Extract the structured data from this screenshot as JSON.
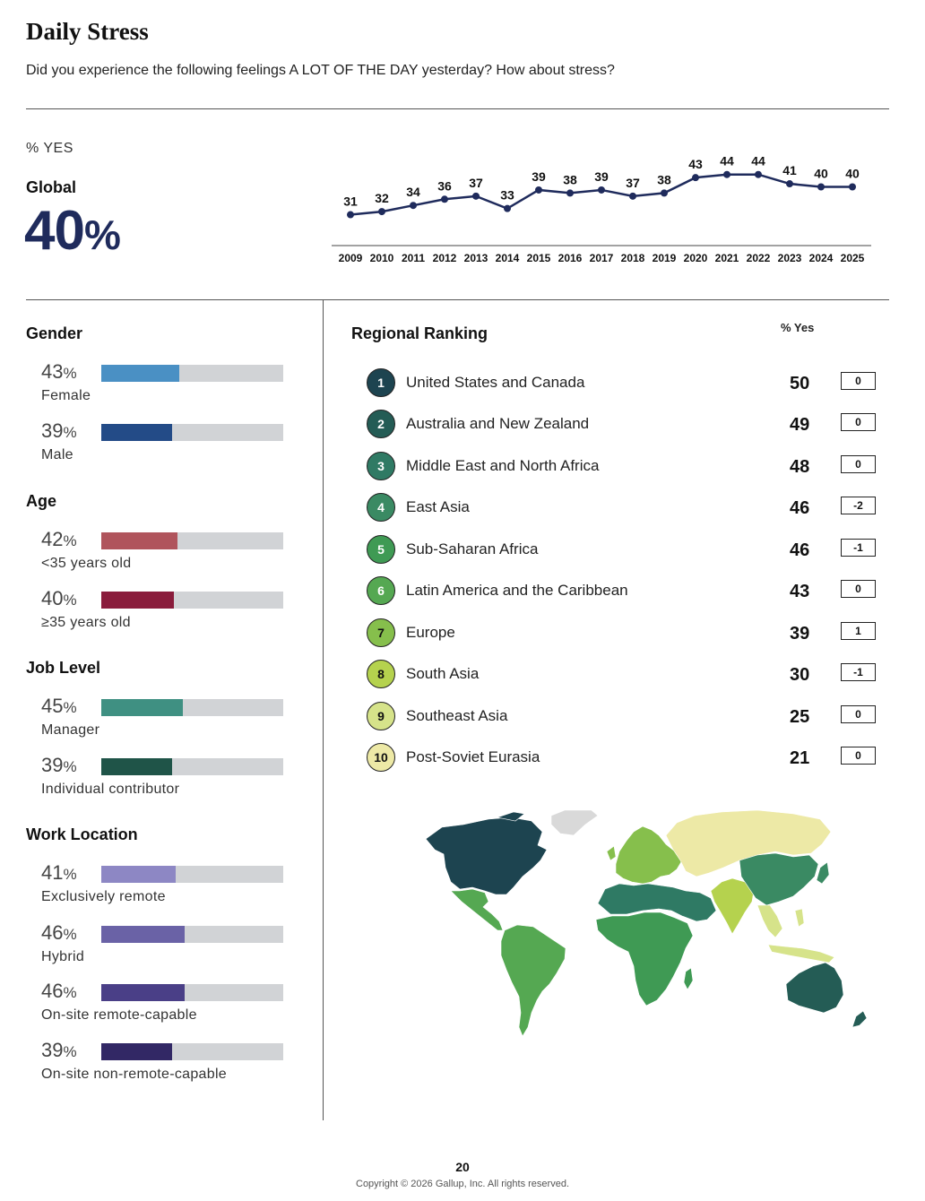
{
  "header": {
    "title": "Daily Stress",
    "subtitle": "Did you experience the following feelings A LOT OF THE DAY yesterday? How about stress?"
  },
  "summary": {
    "yes_label": "% YES",
    "global_label": "Global",
    "global_value": "40",
    "global_pct_sign": "%"
  },
  "chart_data": {
    "type": "line",
    "title": "",
    "x": [
      "2009",
      "2010",
      "2011",
      "2012",
      "2013",
      "2014",
      "2015",
      "2016",
      "2017",
      "2018",
      "2019",
      "2020",
      "2021",
      "2022",
      "2023",
      "2024",
      "2025"
    ],
    "values": [
      31,
      32,
      34,
      36,
      37,
      33,
      39,
      38,
      39,
      37,
      38,
      43,
      44,
      44,
      41,
      40,
      40
    ],
    "ylim": [
      25,
      50
    ],
    "xlabel": "",
    "ylabel": "",
    "grid": false,
    "color": "#1f2b5c"
  },
  "demographics": [
    {
      "title": "Gender",
      "items": [
        {
          "value": "43",
          "pct": "%",
          "label": "Female",
          "fraction": 0.43,
          "color": "#4a90c4"
        },
        {
          "value": "39",
          "pct": "%",
          "label": "Male",
          "fraction": 0.39,
          "color": "#234b87"
        }
      ]
    },
    {
      "title": "Age",
      "items": [
        {
          "value": "42",
          "pct": "%",
          "label": "<35 years old",
          "fraction": 0.42,
          "color": "#b0545c"
        },
        {
          "value": "40",
          "pct": "%",
          "label": "≥35 years old",
          "fraction": 0.4,
          "color": "#8a1c3c"
        }
      ]
    },
    {
      "title": "Job Level",
      "items": [
        {
          "value": "45",
          "pct": "%",
          "label": "Manager",
          "fraction": 0.45,
          "color": "#3f9082"
        },
        {
          "value": "39",
          "pct": "%",
          "label": "Individual contributor",
          "fraction": 0.39,
          "color": "#1f5448"
        }
      ]
    },
    {
      "title": "Work Location",
      "items": [
        {
          "value": "41",
          "pct": "%",
          "label": "Exclusively remote",
          "fraction": 0.41,
          "color": "#8d87c4"
        },
        {
          "value": "46",
          "pct": "%",
          "label": "Hybrid",
          "fraction": 0.46,
          "color": "#6a62a6"
        },
        {
          "value": "46",
          "pct": "%",
          "label": "On-site remote-capable",
          "fraction": 0.46,
          "color": "#4a3f87"
        },
        {
          "value": "39",
          "pct": "%",
          "label": "On-site non-remote-capable",
          "fraction": 0.39,
          "color": "#322865"
        }
      ]
    }
  ],
  "regional": {
    "title": "Regional Ranking",
    "yes_header": "% Yes",
    "rows": [
      {
        "rank": "1",
        "name": "United States and Canada",
        "value": "50",
        "change": "0",
        "color": "#1d4450",
        "text_color": "#ffffff"
      },
      {
        "rank": "2",
        "name": "Australia and New Zealand",
        "value": "49",
        "change": "0",
        "color": "#245c55",
        "text_color": "#ffffff"
      },
      {
        "rank": "3",
        "name": "Middle East and North Africa",
        "value": "48",
        "change": "0",
        "color": "#2f7a64",
        "text_color": "#ffffff"
      },
      {
        "rank": "4",
        "name": "East Asia",
        "value": "46",
        "change": "-2",
        "color": "#3a8a63",
        "text_color": "#ffffff"
      },
      {
        "rank": "5",
        "name": "Sub-Saharan Africa",
        "value": "46",
        "change": "-1",
        "color": "#3f9a54",
        "text_color": "#ffffff"
      },
      {
        "rank": "6",
        "name": "Latin America and the Caribbean",
        "value": "43",
        "change": "0",
        "color": "#55a852",
        "text_color": "#ffffff"
      },
      {
        "rank": "7",
        "name": "Europe",
        "value": "39",
        "change": "1",
        "color": "#86bf4c",
        "text_color": "#111111"
      },
      {
        "rank": "8",
        "name": "South Asia",
        "value": "30",
        "change": "-1",
        "color": "#b5d24e",
        "text_color": "#111111"
      },
      {
        "rank": "9",
        "name": "Southeast Asia",
        "value": "25",
        "change": "0",
        "color": "#d6e38a",
        "text_color": "#111111"
      },
      {
        "rank": "10",
        "name": "Post-Soviet Eurasia",
        "value": "21",
        "change": "0",
        "color": "#ede9a6",
        "text_color": "#111111"
      }
    ]
  },
  "map": {
    "colors": {
      "usa_canada": "#1d4450",
      "greenland": "#d9d9d9",
      "latin_america": "#55a852",
      "europe": "#86bf4c",
      "post_soviet": "#ede9a6",
      "mena": "#2f7a64",
      "sub_saharan": "#3f9a54",
      "east_asia": "#3a8a63",
      "south_asia": "#b5d24e",
      "southeast_asia": "#d6e38a",
      "australia_nz": "#245c55"
    }
  },
  "footer": {
    "page": "20",
    "copyright": "Copyright © 2026 Gallup, Inc. All rights reserved."
  }
}
